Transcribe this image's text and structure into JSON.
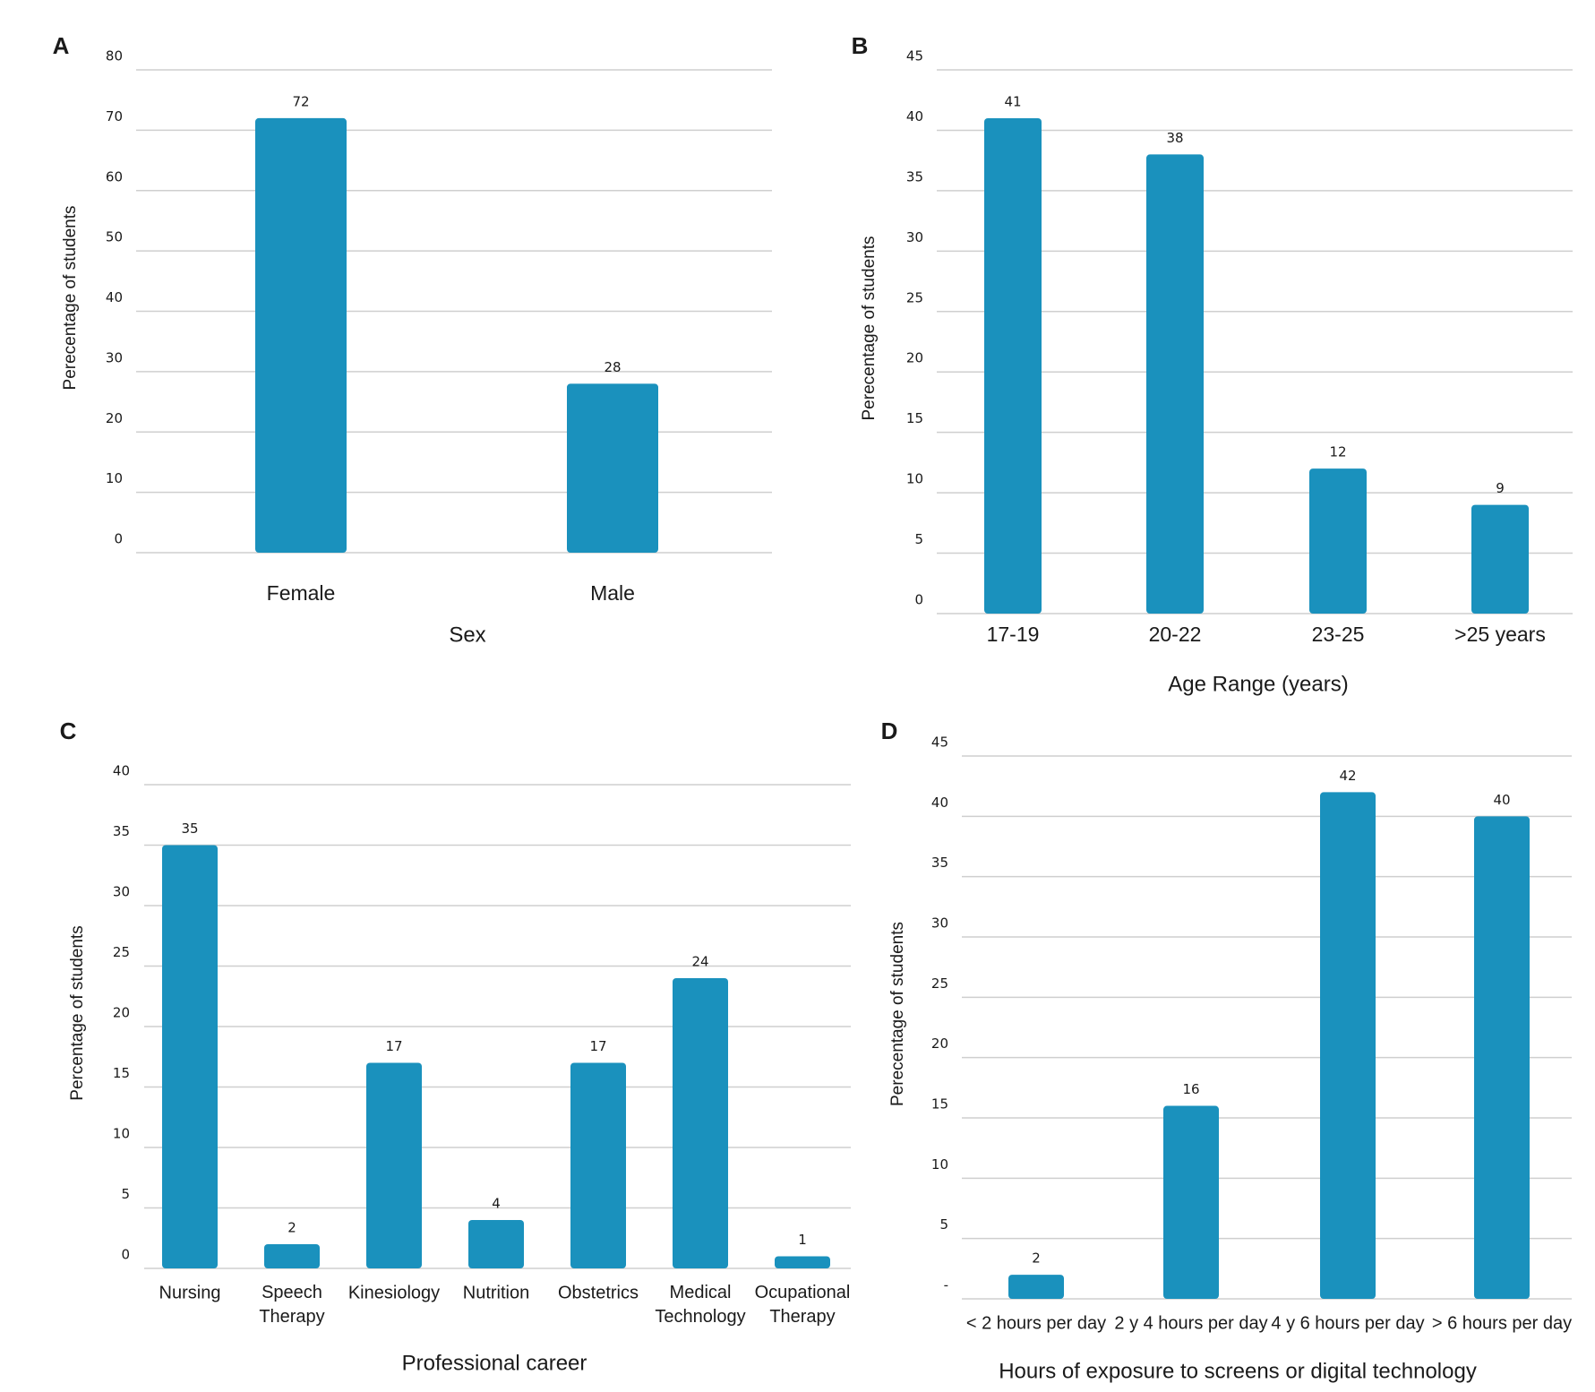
{
  "bar_color": "#1a91bd",
  "grid_color": "#cfcfcf",
  "chart_data": [
    {
      "id": "A",
      "panel": "A",
      "type": "bar",
      "categories": [
        "Female",
        "Male"
      ],
      "values": [
        72,
        28
      ],
      "xlabel": "Sex",
      "ylabel": "Perecentage of students",
      "ylim": [
        0,
        80
      ],
      "yticks": [
        "0",
        "10",
        "20",
        "30",
        "40",
        "50",
        "60",
        "70",
        "80"
      ],
      "grid": true
    },
    {
      "id": "B",
      "panel": "B",
      "type": "bar",
      "categories": [
        "17-19",
        "20-22",
        "23-25",
        ">25 years"
      ],
      "values": [
        41,
        38,
        12,
        9
      ],
      "xlabel": "Age Range (years)",
      "ylabel": "Perecentage of students",
      "ylim": [
        0,
        45
      ],
      "yticks": [
        "0",
        "5",
        "10",
        "15",
        "20",
        "25",
        "30",
        "35",
        "40",
        "45"
      ],
      "grid": true
    },
    {
      "id": "C",
      "panel": "C",
      "type": "bar",
      "categories": [
        "Nursing",
        "Speech Therapy",
        "Kinesiology",
        "Nutrition",
        "Obstetrics",
        "Medical Technology",
        "Ocupational Therapy"
      ],
      "values": [
        35,
        2,
        17,
        4,
        17,
        24,
        1
      ],
      "xlabel": "Professional career",
      "ylabel": "Percentage of students",
      "ylim": [
        0,
        40
      ],
      "yticks": [
        "0",
        "5",
        "10",
        "15",
        "20",
        "25",
        "30",
        "35",
        "40"
      ],
      "grid": true
    },
    {
      "id": "D",
      "panel": "D",
      "type": "bar",
      "categories": [
        "< 2 hours per day",
        "2 y 4 hours per day",
        "4 y 6 hours per day",
        "> 6 hours per day"
      ],
      "values": [
        2,
        16,
        42,
        40
      ],
      "xlabel": "Hours of exposure to screens or digital technology",
      "ylabel": "Perecentage of students",
      "ylim": [
        0,
        45
      ],
      "yticks": [
        "-",
        "5",
        "10",
        "15",
        "20",
        "25",
        "30",
        "35",
        "40",
        "45"
      ],
      "grid": true
    }
  ]
}
